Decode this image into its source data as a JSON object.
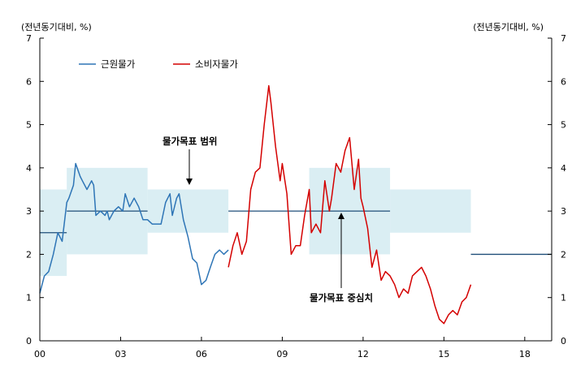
{
  "chart_data": {
    "type": "line",
    "unit_left": "(전년동기대비, %)",
    "unit_right": "(전년동기대비, %)",
    "y_left": {
      "min": 0,
      "max": 7,
      "ticks": [
        0,
        1,
        2,
        3,
        4,
        5,
        6,
        7
      ]
    },
    "y_right": {
      "min": 0,
      "max": 7,
      "ticks": [
        0,
        1,
        2,
        3,
        4,
        5,
        6,
        7
      ]
    },
    "x_axis": {
      "min": 2000,
      "max": 2019,
      "ticks": [
        2000,
        2003,
        2006,
        2009,
        2012,
        2015,
        2018
      ],
      "tick_labels": [
        "00",
        "03",
        "06",
        "09",
        "12",
        "15",
        "18"
      ]
    },
    "grid": false,
    "legend_position": "top-left",
    "target_range": [
      {
        "x0": 2000.0,
        "x1": 2001.0,
        "low": 1.5,
        "high": 3.5
      },
      {
        "x0": 2001.0,
        "x1": 2004.0,
        "low": 2.0,
        "high": 4.0
      },
      {
        "x0": 2004.0,
        "x1": 2007.0,
        "low": 2.5,
        "high": 3.5
      },
      {
        "x0": 2010.0,
        "x1": 2013.0,
        "low": 2.0,
        "high": 4.0
      },
      {
        "x0": 2013.0,
        "x1": 2016.0,
        "low": 2.5,
        "high": 3.5
      }
    ],
    "target_center": [
      {
        "x0": 2000.0,
        "x1": 2001.0,
        "y": 2.5
      },
      {
        "x0": 2001.0,
        "x1": 2004.0,
        "y": 3.0
      },
      {
        "x0": 2007.0,
        "x1": 2013.0,
        "y": 3.0
      },
      {
        "x0": 2016.0,
        "x1": 2019.0,
        "y": 2.0
      }
    ],
    "annotations": [
      {
        "label": "물가목표 범위",
        "x": 2005.5,
        "y": 3.6
      },
      {
        "label": "물가목표 중심치",
        "x": 2011.1,
        "y": 3.0
      }
    ],
    "series": [
      {
        "name": "근원물가",
        "color": "#2e75b6",
        "x": [
          2000.0,
          2000.17,
          2000.33,
          2000.5,
          2000.67,
          2000.83,
          2001.0,
          2001.08,
          2001.25,
          2001.33,
          2001.5,
          2001.58,
          2001.75,
          2001.92,
          2002.0,
          2002.08,
          2002.25,
          2002.42,
          2002.5,
          2002.58,
          2002.75,
          2002.92,
          2003.08,
          2003.17,
          2003.33,
          2003.5,
          2003.67,
          2003.83,
          2004.0,
          2004.17,
          2004.33,
          2004.5,
          2004.67,
          2004.83,
          2004.92,
          2005.08,
          2005.17,
          2005.33,
          2005.5,
          2005.67,
          2005.83,
          2006.0,
          2006.17,
          2006.33,
          2006.5,
          2006.67,
          2006.83,
          2007.0
        ],
        "y": [
          1.1,
          1.5,
          1.6,
          2.0,
          2.5,
          2.3,
          3.2,
          3.3,
          3.6,
          4.1,
          3.8,
          3.7,
          3.5,
          3.7,
          3.6,
          2.9,
          3.0,
          2.9,
          3.0,
          2.8,
          3.0,
          3.1,
          3.0,
          3.4,
          3.1,
          3.3,
          3.1,
          2.8,
          2.8,
          2.7,
          2.7,
          2.7,
          3.2,
          3.4,
          2.9,
          3.3,
          3.4,
          2.8,
          2.4,
          1.9,
          1.8,
          1.3,
          1.4,
          1.7,
          2.0,
          2.1,
          2.0,
          2.1
        ]
      },
      {
        "name": "소비자물가",
        "color": "#d40000",
        "x": [
          2007.0,
          2007.17,
          2007.33,
          2007.5,
          2007.67,
          2007.83,
          2008.0,
          2008.17,
          2008.33,
          2008.5,
          2008.58,
          2008.75,
          2008.92,
          2009.0,
          2009.17,
          2009.33,
          2009.5,
          2009.67,
          2009.83,
          2010.0,
          2010.08,
          2010.25,
          2010.42,
          2010.58,
          2010.75,
          2010.83,
          2011.0,
          2011.17,
          2011.33,
          2011.5,
          2011.67,
          2011.83,
          2011.92,
          2012.0,
          2012.17,
          2012.33,
          2012.5,
          2012.67,
          2012.83,
          2013.0,
          2013.17,
          2013.33,
          2013.5,
          2013.67,
          2013.83,
          2014.0,
          2014.17,
          2014.33,
          2014.5,
          2014.67,
          2014.83,
          2015.0,
          2015.17,
          2015.33,
          2015.5,
          2015.67,
          2015.83,
          2016.0
        ],
        "y": [
          1.7,
          2.2,
          2.5,
          2.0,
          2.3,
          3.5,
          3.9,
          4.0,
          5.0,
          5.9,
          5.5,
          4.5,
          3.7,
          4.1,
          3.4,
          2.0,
          2.2,
          2.2,
          2.9,
          3.5,
          2.5,
          2.7,
          2.5,
          3.7,
          3.0,
          3.3,
          4.1,
          3.9,
          4.4,
          4.7,
          3.5,
          4.2,
          3.3,
          3.1,
          2.6,
          1.7,
          2.1,
          1.4,
          1.6,
          1.5,
          1.3,
          1.0,
          1.2,
          1.1,
          1.5,
          1.6,
          1.7,
          1.5,
          1.2,
          0.8,
          0.5,
          0.4,
          0.6,
          0.7,
          0.6,
          0.9,
          1.0,
          1.3
        ]
      }
    ]
  }
}
